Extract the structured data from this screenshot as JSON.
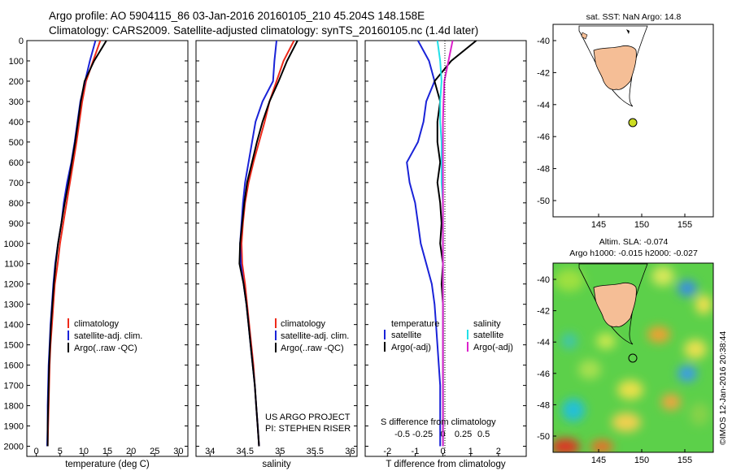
{
  "header": {
    "line1": "Argo profile: AO 5904115_86 03-Jan-2016 20160105_210 45.204S 148.158E",
    "line2": "Climatology: CARS2009. Satellite-adjusted climatology: synTS_20160105.nc (1.4d later)"
  },
  "colors": {
    "climatology": "#ee2a1a",
    "satellite": "#1a23d8",
    "argo": "#000000",
    "satellite_salinity": "#22e0e8",
    "argo_salinity": "#dd22cc",
    "land": "#f5be96"
  },
  "depth_ticks": [
    "0",
    "100",
    "200",
    "300",
    "400",
    "500",
    "600",
    "700",
    "800",
    "900",
    "1000",
    "1100",
    "1200",
    "1300",
    "1400",
    "1500",
    "1600",
    "1700",
    "1800",
    "1900",
    "2000"
  ],
  "panels": {
    "temperature": {
      "xlabel": "temperature (deg C)",
      "xticks": [
        "0",
        "5",
        "10",
        "15",
        "20",
        "25",
        "30"
      ],
      "legend": [
        "climatology",
        "satellite-adj. clim.",
        "Argo(..raw -QC)"
      ]
    },
    "salinity": {
      "xlabel": "salinity",
      "xticks": [
        "34",
        "34.5",
        "35",
        "35.5",
        "36"
      ],
      "legend": [
        "climatology",
        "satellite-adj. clim.",
        "Argo(..raw -QC)"
      ],
      "note1": "US ARGO PROJECT",
      "note2": "PI: STEPHEN RISER"
    },
    "difference": {
      "xlabel": "T difference from climatology",
      "top_label": "S difference from climatology",
      "xticks": [
        "-2",
        "-1",
        "0",
        "1",
        "2"
      ],
      "sticks": [
        "-0.5",
        "-0.25",
        "0",
        "0.25",
        "0.5"
      ],
      "legend_t_title": "temperature",
      "legend_s_title": "salinity",
      "legend_t": [
        "satellite",
        "Argo(-adj)"
      ],
      "legend_s": [
        "satellite",
        "Argo(-adj)"
      ]
    }
  },
  "map_sst": {
    "title": "sat. SST: NaN Argo: 14.8",
    "yticks": [
      "-40",
      "-42",
      "-44",
      "-46",
      "-48",
      "-50"
    ],
    "xticks": [
      "145",
      "150",
      "155"
    ]
  },
  "map_sla": {
    "title1": "Altim. SLA: -0.074",
    "title2": "Argo h1000: -0.015 h2000: -0.027",
    "yticks": [
      "-40",
      "-42",
      "-44",
      "-46",
      "-48",
      "-50"
    ],
    "xticks": [
      "145",
      "150",
      "155"
    ],
    "credit": "©IMOS 12-Jan-2016 20:38:44"
  },
  "chart_data": [
    {
      "type": "line",
      "panel": "temperature",
      "ylim": [
        2050,
        0
      ],
      "xlim": [
        -2,
        32
      ],
      "series": [
        {
          "name": "climatology",
          "x": [
            13.5,
            12,
            10.5,
            9.7,
            9.1,
            8.5,
            7.8,
            7.1,
            6.4,
            5.7,
            5.0,
            4.5,
            3.9,
            3.6,
            3.3,
            3.0,
            2.8,
            2.7,
            2.6,
            2.5,
            2.4
          ],
          "y": [
            0,
            100,
            200,
            300,
            400,
            500,
            600,
            700,
            800,
            900,
            1000,
            1100,
            1200,
            1300,
            1400,
            1500,
            1600,
            1700,
            1800,
            1900,
            2000
          ]
        },
        {
          "name": "satellite-adj. clim.",
          "x": [
            12.5,
            11.3,
            10.3,
            9.3,
            8.7,
            8.1,
            7.4,
            6.5,
            5.8,
            5.3,
            4.6,
            4.0,
            3.6,
            3.3,
            3.0,
            2.8,
            2.6,
            2.5,
            2.4,
            2.4,
            2.3
          ],
          "y": [
            0,
            100,
            200,
            300,
            400,
            500,
            600,
            700,
            800,
            900,
            1000,
            1100,
            1200,
            1300,
            1400,
            1500,
            1600,
            1700,
            1800,
            1900,
            2000
          ]
        },
        {
          "name": "Argo(..raw -QC)",
          "x": [
            14.8,
            12.2,
            10.2,
            9.4,
            8.8,
            8.2,
            7.5,
            6.8,
            6.0,
            5.3,
            4.6,
            4.1,
            3.7,
            3.4,
            3.1,
            2.9,
            2.7,
            2.6,
            2.5,
            2.4,
            2.4
          ],
          "y": [
            0,
            100,
            200,
            300,
            400,
            500,
            600,
            700,
            800,
            900,
            1000,
            1100,
            1200,
            1300,
            1400,
            1500,
            1600,
            1700,
            1800,
            1900,
            2000
          ]
        }
      ]
    },
    {
      "type": "line",
      "panel": "salinity",
      "ylim": [
        2050,
        0
      ],
      "xlim": [
        33.8,
        36.1
      ],
      "series": [
        {
          "name": "climatology",
          "x": [
            35.2,
            35.05,
            34.95,
            34.85,
            34.78,
            34.7,
            34.62,
            34.55,
            34.5,
            34.47,
            34.45,
            34.46,
            34.5,
            34.53,
            34.56,
            34.59,
            34.62,
            34.64,
            34.66,
            34.68,
            34.7
          ],
          "y": [
            0,
            100,
            200,
            300,
            400,
            500,
            600,
            700,
            800,
            900,
            1000,
            1100,
            1200,
            1300,
            1400,
            1500,
            1600,
            1700,
            1800,
            1900,
            2000
          ]
        },
        {
          "name": "satellite-adj. clim.",
          "x": [
            34.95,
            34.92,
            34.9,
            34.75,
            34.65,
            34.6,
            34.55,
            34.5,
            34.47,
            34.45,
            34.43,
            34.44,
            34.48,
            34.52,
            34.55,
            34.58,
            34.61,
            34.64,
            34.66,
            34.68,
            34.7
          ],
          "y": [
            0,
            100,
            200,
            300,
            400,
            500,
            600,
            700,
            800,
            900,
            1000,
            1100,
            1200,
            1300,
            1400,
            1500,
            1600,
            1700,
            1800,
            1900,
            2000
          ]
        },
        {
          "name": "Argo(..raw -QC)",
          "x": [
            35.25,
            35.1,
            34.98,
            34.85,
            34.75,
            34.67,
            34.6,
            34.53,
            34.49,
            34.46,
            34.43,
            34.42,
            34.48,
            34.52,
            34.55,
            34.58,
            34.61,
            34.64,
            34.66,
            34.68,
            34.7
          ],
          "y": [
            0,
            100,
            200,
            300,
            400,
            500,
            600,
            700,
            800,
            900,
            1000,
            1100,
            1200,
            1300,
            1400,
            1500,
            1600,
            1700,
            1800,
            1900,
            2000
          ]
        }
      ]
    },
    {
      "type": "line",
      "panel": "difference",
      "ylim": [
        2050,
        0
      ],
      "xlim": [
        -2.8,
        3.0
      ],
      "series": [
        {
          "name": "temperature satellite",
          "x": [
            -0.9,
            -0.5,
            -0.3,
            -0.6,
            -0.7,
            -0.9,
            -1.3,
            -1.2,
            -1.0,
            -0.9,
            -0.8,
            -0.6,
            -0.4,
            -0.3,
            -0.25,
            -0.2,
            -0.15,
            -0.1,
            -0.1,
            -0.1,
            -0.1
          ],
          "y": [
            0,
            100,
            200,
            300,
            400,
            500,
            600,
            700,
            800,
            900,
            1000,
            1100,
            1200,
            1300,
            1400,
            1500,
            1600,
            1700,
            1800,
            1900,
            2000
          ]
        },
        {
          "name": "temperature Argo(-adj)",
          "x": [
            1.2,
            0.3,
            -0.3,
            -0.1,
            -0.2,
            -0.2,
            -0.1,
            -0.2,
            -0.1,
            -0.05,
            -0.1,
            0.0,
            -0.05,
            0.0,
            0.0,
            0.0,
            0.0,
            0.0,
            0.0,
            0.0,
            0.0
          ],
          "y": [
            0,
            100,
            200,
            300,
            400,
            500,
            600,
            700,
            800,
            900,
            1000,
            1100,
            1200,
            1300,
            1400,
            1500,
            1600,
            1700,
            1800,
            1900,
            2000
          ]
        },
        {
          "name": "salinity satellite",
          "x": [
            -0.2,
            -0.1,
            -0.05,
            -0.1,
            -0.1,
            -0.05,
            -0.05,
            -0.05,
            0.0,
            0.0,
            0.0,
            0.0,
            0.0,
            0.0,
            0.0,
            0.0,
            0.0,
            0.0,
            0.0,
            0.0,
            0.0
          ],
          "y": [
            0,
            100,
            200,
            300,
            400,
            500,
            600,
            700,
            800,
            900,
            1000,
            1100,
            1200,
            1300,
            1400,
            1500,
            1600,
            1700,
            1800,
            1900,
            2000
          ]
        },
        {
          "name": "salinity Argo(-adj)",
          "x": [
            0.35,
            0.2,
            0.05,
            0.02,
            0.0,
            0.0,
            0.0,
            0.0,
            0.0,
            0.0,
            0.0,
            0.0,
            0.0,
            0.0,
            0.0,
            0.0,
            0.0,
            0.0,
            0.0,
            0.0,
            0.0
          ],
          "y": [
            0,
            100,
            200,
            300,
            400,
            500,
            600,
            700,
            800,
            900,
            1000,
            1100,
            1200,
            1300,
            1400,
            1500,
            1600,
            1700,
            1800,
            1900,
            2000
          ]
        }
      ]
    }
  ]
}
